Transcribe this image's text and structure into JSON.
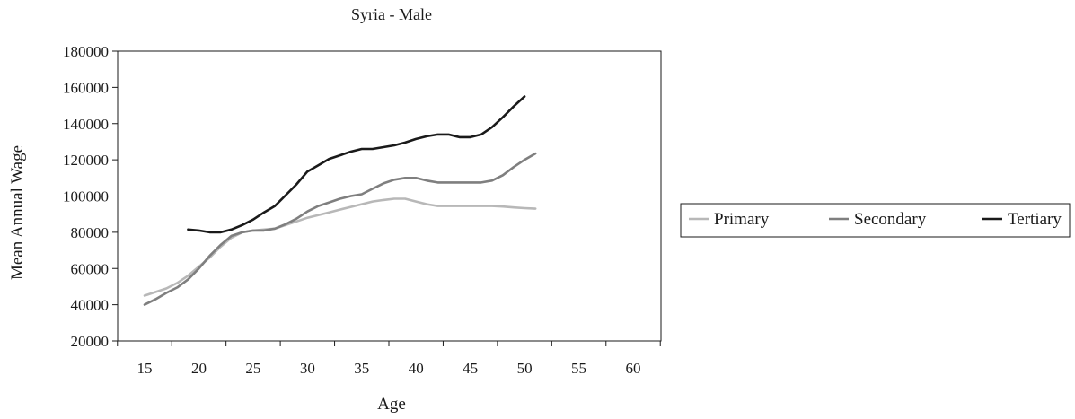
{
  "chart_data": {
    "type": "line",
    "title": "Syria - Male",
    "xlabel": "Age",
    "ylabel": "Mean Annual Wage",
    "xlim": [
      15,
      60
    ],
    "ylim": [
      20000,
      180000
    ],
    "xticks": [
      15,
      20,
      25,
      30,
      35,
      40,
      45,
      50,
      55,
      60
    ],
    "yticks": [
      20000,
      40000,
      60000,
      80000,
      100000,
      120000,
      140000,
      160000,
      180000
    ],
    "grid": false,
    "legend": "right",
    "series": [
      {
        "name": "Primary",
        "color": "#b8b8b8",
        "points": [
          [
            15,
            45000
          ],
          [
            16,
            47000
          ],
          [
            17,
            49000
          ],
          [
            18,
            52000
          ],
          [
            19,
            56000
          ],
          [
            20,
            61000
          ],
          [
            21,
            66000
          ],
          [
            22,
            72000
          ],
          [
            23,
            77000
          ],
          [
            24,
            80000
          ],
          [
            25,
            81000
          ],
          [
            26,
            81500
          ],
          [
            27,
            82000
          ],
          [
            28,
            84000
          ],
          [
            29,
            86000
          ],
          [
            30,
            88000
          ],
          [
            31,
            89500
          ],
          [
            32,
            91000
          ],
          [
            33,
            92500
          ],
          [
            34,
            94000
          ],
          [
            35,
            95500
          ],
          [
            36,
            97000
          ],
          [
            37,
            97800
          ],
          [
            38,
            98500
          ],
          [
            39,
            98500
          ],
          [
            40,
            97000
          ],
          [
            41,
            95500
          ],
          [
            42,
            94500
          ],
          [
            43,
            94500
          ],
          [
            44,
            94500
          ],
          [
            45,
            94500
          ],
          [
            46,
            94500
          ],
          [
            47,
            94500
          ],
          [
            48,
            94200
          ],
          [
            49,
            93700
          ],
          [
            50,
            93300
          ],
          [
            51,
            93000
          ]
        ]
      },
      {
        "name": "Secondary",
        "color": "#7f7f7f",
        "points": [
          [
            15,
            40000
          ],
          [
            16,
            43000
          ],
          [
            17,
            46500
          ],
          [
            18,
            49500
          ],
          [
            19,
            54000
          ],
          [
            20,
            60000
          ],
          [
            21,
            67000
          ],
          [
            22,
            73000
          ],
          [
            23,
            78000
          ],
          [
            24,
            80000
          ],
          [
            25,
            81000
          ],
          [
            26,
            81000
          ],
          [
            27,
            82000
          ],
          [
            28,
            84500
          ],
          [
            29,
            87500
          ],
          [
            30,
            91500
          ],
          [
            31,
            94500
          ],
          [
            32,
            96500
          ],
          [
            33,
            98500
          ],
          [
            34,
            100000
          ],
          [
            35,
            101000
          ],
          [
            36,
            104000
          ],
          [
            37,
            107000
          ],
          [
            38,
            109000
          ],
          [
            39,
            110000
          ],
          [
            40,
            110000
          ],
          [
            41,
            108500
          ],
          [
            42,
            107500
          ],
          [
            43,
            107500
          ],
          [
            44,
            107500
          ],
          [
            45,
            107500
          ],
          [
            46,
            107500
          ],
          [
            47,
            108500
          ],
          [
            48,
            111500
          ],
          [
            49,
            116000
          ],
          [
            50,
            120000
          ],
          [
            51,
            123500
          ]
        ]
      },
      {
        "name": "Tertiary",
        "color": "#1a1a1a",
        "points": [
          [
            19,
            81500
          ],
          [
            20,
            81000
          ],
          [
            21,
            80000
          ],
          [
            22,
            80000
          ],
          [
            23,
            81500
          ],
          [
            24,
            84000
          ],
          [
            25,
            87000
          ],
          [
            26,
            91000
          ],
          [
            27,
            94500
          ],
          [
            28,
            100500
          ],
          [
            29,
            106500
          ],
          [
            30,
            113500
          ],
          [
            31,
            117000
          ],
          [
            32,
            120500
          ],
          [
            33,
            122500
          ],
          [
            34,
            124500
          ],
          [
            35,
            126000
          ],
          [
            36,
            126000
          ],
          [
            37,
            127000
          ],
          [
            38,
            128000
          ],
          [
            39,
            129500
          ],
          [
            40,
            131500
          ],
          [
            41,
            133000
          ],
          [
            42,
            134000
          ],
          [
            43,
            134000
          ],
          [
            44,
            132500
          ],
          [
            45,
            132500
          ],
          [
            46,
            134000
          ],
          [
            47,
            138000
          ],
          [
            48,
            143500
          ],
          [
            49,
            149500
          ],
          [
            50,
            155000
          ]
        ]
      }
    ]
  }
}
